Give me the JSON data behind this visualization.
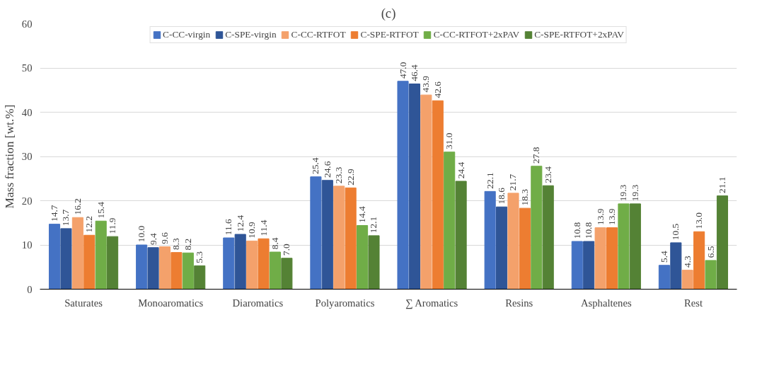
{
  "chart_data": {
    "type": "bar",
    "title": "(c)",
    "ylabel": "Mass fraction [wt.%]",
    "categories": [
      "Saturates",
      "Monoaromatics",
      "Diaromatics",
      "Polyaromatics",
      "∑ Aromatics",
      "Resins",
      "Asphaltenes",
      "Rest"
    ],
    "series": [
      {
        "name": "C-CC-virgin",
        "color": "#4472c4",
        "values": [
          14.7,
          10.0,
          11.6,
          25.4,
          47.0,
          22.1,
          10.8,
          5.4
        ],
        "value_labels": [
          "14.7",
          "10.0",
          "11.6",
          "25.4",
          "47.0",
          "22.1",
          "10.8",
          "5.4"
        ]
      },
      {
        "name": "C-SPE-virgin",
        "color": "#2f5597",
        "values": [
          13.7,
          9.4,
          12.4,
          24.6,
          46.4,
          18.6,
          10.8,
          10.5
        ],
        "value_labels": [
          "13.7",
          "9.4",
          "12.4",
          "24.6",
          "46.4",
          "18.6",
          "10.8",
          "10.5"
        ]
      },
      {
        "name": "C-CC-RTFOT",
        "color": "#f4a16b",
        "values": [
          16.2,
          9.6,
          10.9,
          23.3,
          43.9,
          21.7,
          13.9,
          4.3
        ],
        "value_labels": [
          "16.2",
          "9.6",
          "10.9",
          "23.3",
          "43.9",
          "21.7",
          "13.9",
          "4.3"
        ]
      },
      {
        "name": "C-SPE-RTFOT",
        "color": "#ed7d31",
        "values": [
          12.2,
          8.3,
          11.4,
          22.9,
          42.6,
          18.3,
          13.9,
          13.0
        ],
        "value_labels": [
          "12.2",
          "8.3",
          "11.4",
          "22.9",
          "42.6",
          "18.3",
          "13.9",
          "13.0"
        ]
      },
      {
        "name": "C-CC-RTFOT+2xPAV",
        "color": "#70ad47",
        "values": [
          15.4,
          8.2,
          8.4,
          14.4,
          31.0,
          27.8,
          19.3,
          6.5
        ],
        "value_labels": [
          "15.4",
          "8.2",
          "8.4",
          "14.4",
          "31.0",
          "27.8",
          "19.3",
          "6.5"
        ]
      },
      {
        "name": "C-SPE-RTFOT+2xPAV",
        "color": "#548235",
        "values": [
          11.9,
          5.3,
          7.0,
          12.1,
          24.4,
          23.4,
          19.3,
          21.1
        ],
        "value_labels": [
          "11.9",
          "5.3",
          "7.0",
          "12.1",
          "24.4",
          "23.4",
          "19.3",
          "21.1"
        ]
      }
    ],
    "ylim": [
      0,
      60
    ],
    "yticks": [
      0,
      10,
      20,
      30,
      40,
      50,
      60
    ],
    "grid": "y",
    "legend": "top"
  }
}
